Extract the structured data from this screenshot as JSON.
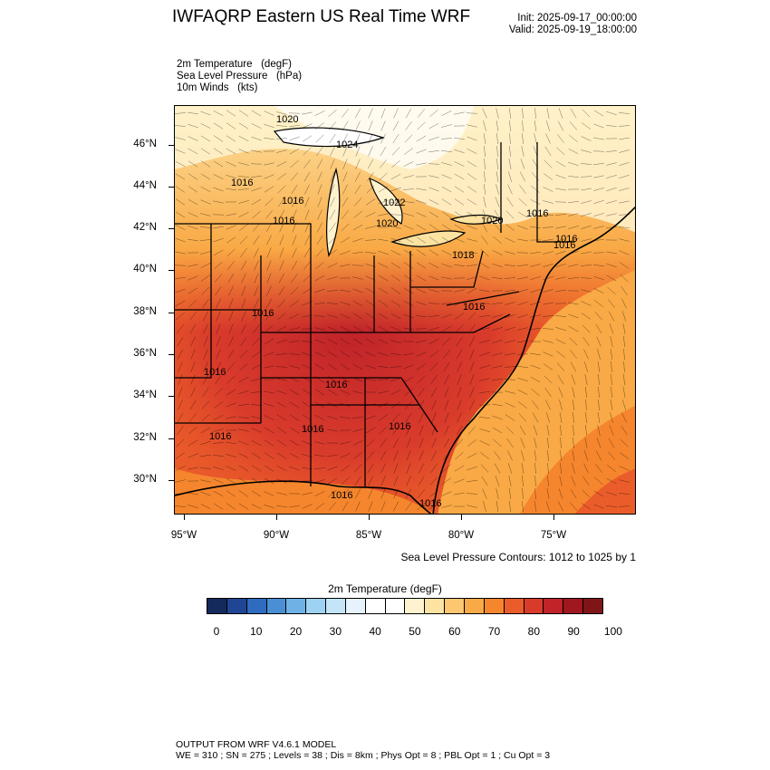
{
  "header": {
    "title": "IWFAQRP Eastern US Real Time WRF",
    "init": "Init: 2025-09-17_00:00:00",
    "valid": "Valid: 2025-09-19_18:00:00"
  },
  "fields": [
    "2m Temperature   (degF)",
    "Sea Level Pressure   (hPa)",
    "10m Winds   (kts)"
  ],
  "map": {
    "lat_labels": [
      "46°N",
      "44°N",
      "42°N",
      "40°N",
      "38°N",
      "36°N",
      "34°N",
      "32°N",
      "30°N"
    ],
    "lon_labels": [
      "95°W",
      "90°W",
      "85°W",
      "80°W",
      "75°W"
    ],
    "isobar_labels": [
      "1020",
      "1024",
      "1016",
      "1016",
      "1016",
      "1022",
      "1020",
      "1020",
      "1016",
      "1016",
      "1018",
      "1016",
      "1016",
      "1016",
      "1016",
      "1016",
      "1016",
      "1016",
      "1016",
      "1016",
      "1016"
    ]
  },
  "contour_note": "Sea Level Pressure Contours: 1012 to 1025 by 1",
  "colorbar": {
    "title": "2m Temperature  (degF)",
    "ticks": [
      "0",
      "10",
      "20",
      "30",
      "40",
      "50",
      "60",
      "70",
      "80",
      "90",
      "100"
    ],
    "colors": [
      "#152a5c",
      "#1f4594",
      "#2f6bbf",
      "#4a8fd4",
      "#6fb1e4",
      "#9ed2f2",
      "#c4e5f8",
      "#e6f3fc",
      "#ffffff",
      "#ffffff",
      "#fff3cf",
      "#fde3a2",
      "#fcc770",
      "#f9a945",
      "#f5862d",
      "#ea5d2a",
      "#d93b2b",
      "#c0232a",
      "#a0171f",
      "#801517"
    ]
  },
  "footer": {
    "line1": "OUTPUT FROM WRF V4.6.1 MODEL",
    "line2": "WE = 310 ; SN = 275 ; Levels = 38 ; Dis = 8km ; Phys Opt = 8 ; PBL Opt = 1 ; Cu Opt = 3"
  }
}
